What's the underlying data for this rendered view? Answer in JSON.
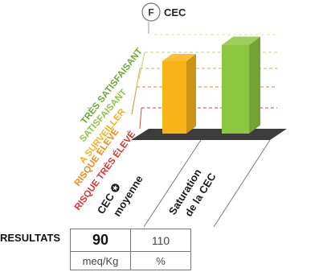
{
  "chart_data": {
    "type": "bar",
    "title": "CEC",
    "badge": "F",
    "categories": [
      {
        "label_lines": [
          "CEC ✪",
          "moyenne"
        ]
      },
      {
        "label_lines": [
          "Saturation",
          "de la CEC"
        ]
      }
    ],
    "values": [
      90,
      110
    ],
    "levels": [
      {
        "label": "RISQUE TRÈS ÉLEVÉ",
        "color": "#e03232",
        "line_color": "#cf4a4a"
      },
      {
        "label": "RISQUE ÉLEVÉ",
        "color": "#ee8a1c",
        "line_color": "#c98a3a"
      },
      {
        "label": "A SURVEILLER",
        "color": "#f6b21b",
        "line_color": "#d4b05a"
      },
      {
        "label": "SATISFAISANT",
        "color": "#8cc63f",
        "line_color": "#b9d67a"
      },
      {
        "label": "TRÈS SATISFAISANT",
        "color": "#6aa82d",
        "line_color": "#d9e89a"
      }
    ],
    "bar_colors": [
      "#f8b416",
      "#8dc63f"
    ]
  },
  "results": {
    "label": "RESULTATS",
    "values": [
      "90",
      "110"
    ],
    "units": [
      "meq/Kg",
      "%"
    ]
  }
}
